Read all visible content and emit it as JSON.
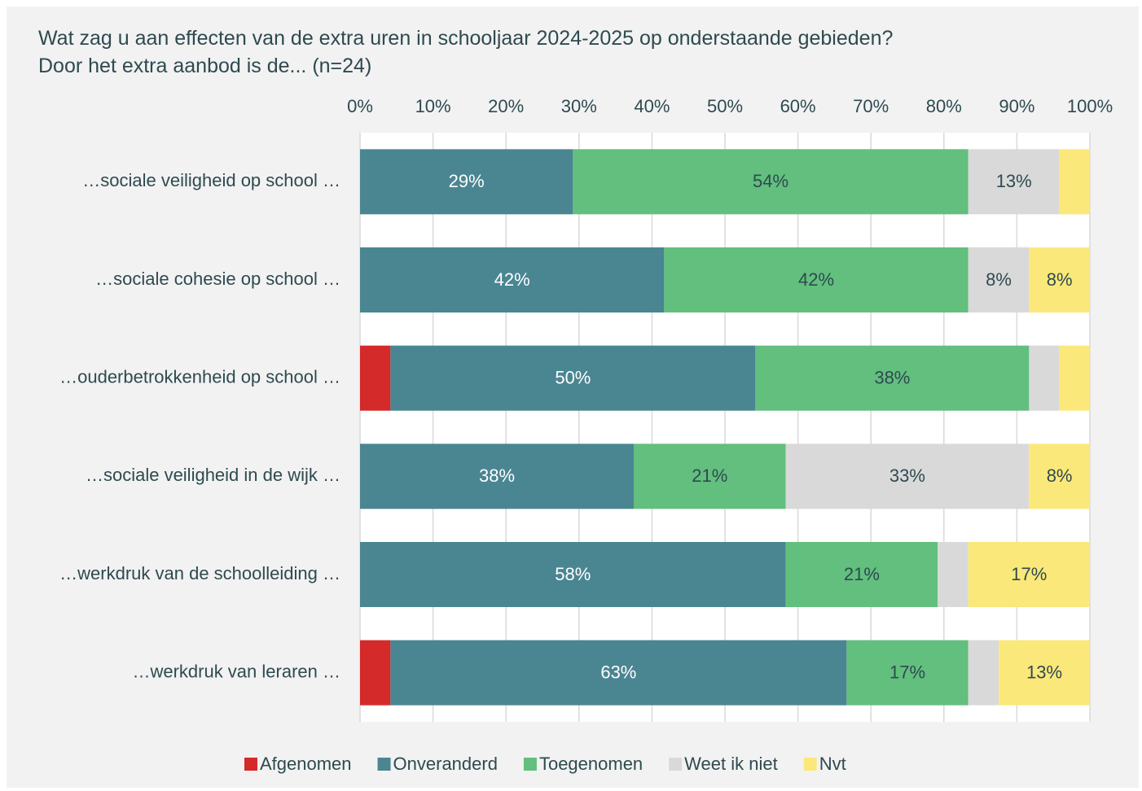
{
  "chart_data": {
    "type": "stacked-bar-horizontal",
    "title": "Wat zag u aan effecten van de extra uren in schooljaar 2024-2025 op onderstaande gebieden? Door het extra aanbod is de... (n=24)",
    "categories": [
      "…sociale veiligheid op school …",
      "…sociale cohesie op school …",
      "…ouderbetrokkenheid op school …",
      "…sociale veiligheid in de wijk …",
      "…werkdruk van de schoolleiding …",
      "…werkdruk van leraren …"
    ],
    "series": [
      {
        "name": "Afgenomen",
        "color": "#d42a2a",
        "values": [
          0,
          0,
          4.17,
          0,
          0,
          4.17
        ],
        "value_labels": [
          null,
          null,
          null,
          null,
          null,
          null
        ]
      },
      {
        "name": "Onveranderd",
        "color": "#4a8592",
        "values": [
          29.17,
          41.67,
          50,
          37.5,
          58.33,
          62.5
        ],
        "value_labels": [
          "29%",
          "42%",
          "50%",
          "38%",
          "58%",
          "63%"
        ]
      },
      {
        "name": "Toegenomen",
        "color": "#62bf7e",
        "values": [
          54.17,
          41.67,
          37.5,
          20.83,
          20.83,
          16.67
        ],
        "value_labels": [
          "54%",
          "42%",
          "38%",
          "21%",
          "21%",
          "17%"
        ]
      },
      {
        "name": "Weet ik niet",
        "color": "#d9d9d9",
        "values": [
          12.5,
          8.33,
          4.17,
          33.33,
          4.17,
          4.17
        ],
        "value_labels": [
          "13%",
          "8%",
          null,
          "33%",
          null,
          null
        ]
      },
      {
        "name": "Nvt",
        "color": "#fbe87a",
        "values": [
          4.17,
          8.33,
          4.17,
          8.33,
          16.67,
          12.5
        ],
        "value_labels": [
          null,
          "8%",
          null,
          "8%",
          "17%",
          "13%"
        ]
      }
    ],
    "xlim": [
      0,
      100
    ],
    "xticks": [
      {
        "value": 0,
        "label": "0%"
      },
      {
        "value": 10,
        "label": "10%"
      },
      {
        "value": 20,
        "label": "20%"
      },
      {
        "value": 30,
        "label": "30%"
      },
      {
        "value": 40,
        "label": "40%"
      },
      {
        "value": 50,
        "label": "50%"
      },
      {
        "value": 60,
        "label": "60%"
      },
      {
        "value": 70,
        "label": "70%"
      },
      {
        "value": 80,
        "label": "80%"
      },
      {
        "value": 90,
        "label": "90%"
      },
      {
        "value": 100,
        "label": "100%"
      }
    ],
    "grid": true,
    "legend": "bottom"
  }
}
